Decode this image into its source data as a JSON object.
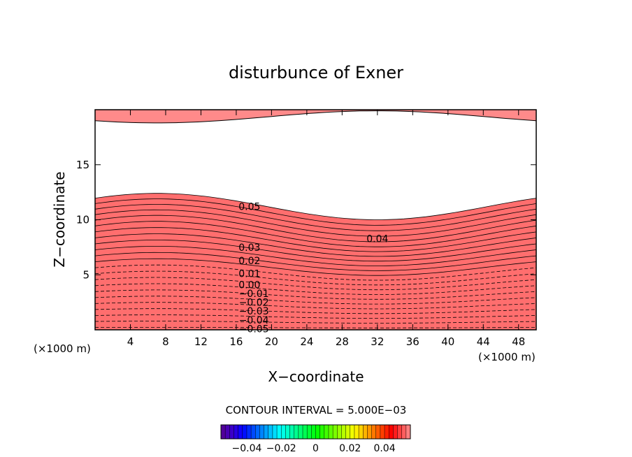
{
  "chart_data": {
    "type": "contour",
    "title": "disturbunce of Exner",
    "xlabel": "X−coordinate",
    "ylabel": "Z−coordinate",
    "x_unit_left": "(×1000 m)",
    "x_unit_right": "(×1000 m)",
    "xlim": [
      0,
      50
    ],
    "ylim": [
      0,
      20
    ],
    "x_ticks": [
      "4",
      "8",
      "12",
      "16",
      "20",
      "24",
      "28",
      "32",
      "36",
      "40",
      "44",
      "48"
    ],
    "y_ticks": [
      "5",
      "10",
      "15"
    ],
    "contour_interval_text": "CONTOUR INTERVAL = 5.000E−03",
    "contour_labels": [
      {
        "text": "0.05",
        "x": 17.5,
        "z": 11.2
      },
      {
        "text": "0.04",
        "x": 32.0,
        "z": 8.3
      },
      {
        "text": "0.03",
        "x": 17.5,
        "z": 7.5
      },
      {
        "text": "0.02",
        "x": 17.5,
        "z": 6.3
      },
      {
        "text": "0.01",
        "x": 17.5,
        "z": 5.1
      },
      {
        "text": "0.00",
        "x": 17.5,
        "z": 4.1
      },
      {
        "text": "−0.01",
        "x": 18.0,
        "z": 3.3
      },
      {
        "text": "−0.02",
        "x": 18.0,
        "z": 2.5
      },
      {
        "text": "−0.03",
        "x": 18.0,
        "z": 1.7
      },
      {
        "text": "−0.04",
        "x": 18.0,
        "z": 0.9
      },
      {
        "text": "−0.05",
        "x": 18.0,
        "z": 0.1
      }
    ],
    "colorbar": {
      "ticks": [
        "−0.04",
        "−0.02",
        "0",
        "0.02",
        "0.04"
      ],
      "range": [
        -0.055,
        0.055
      ]
    },
    "legend": "none",
    "grid": false
  }
}
